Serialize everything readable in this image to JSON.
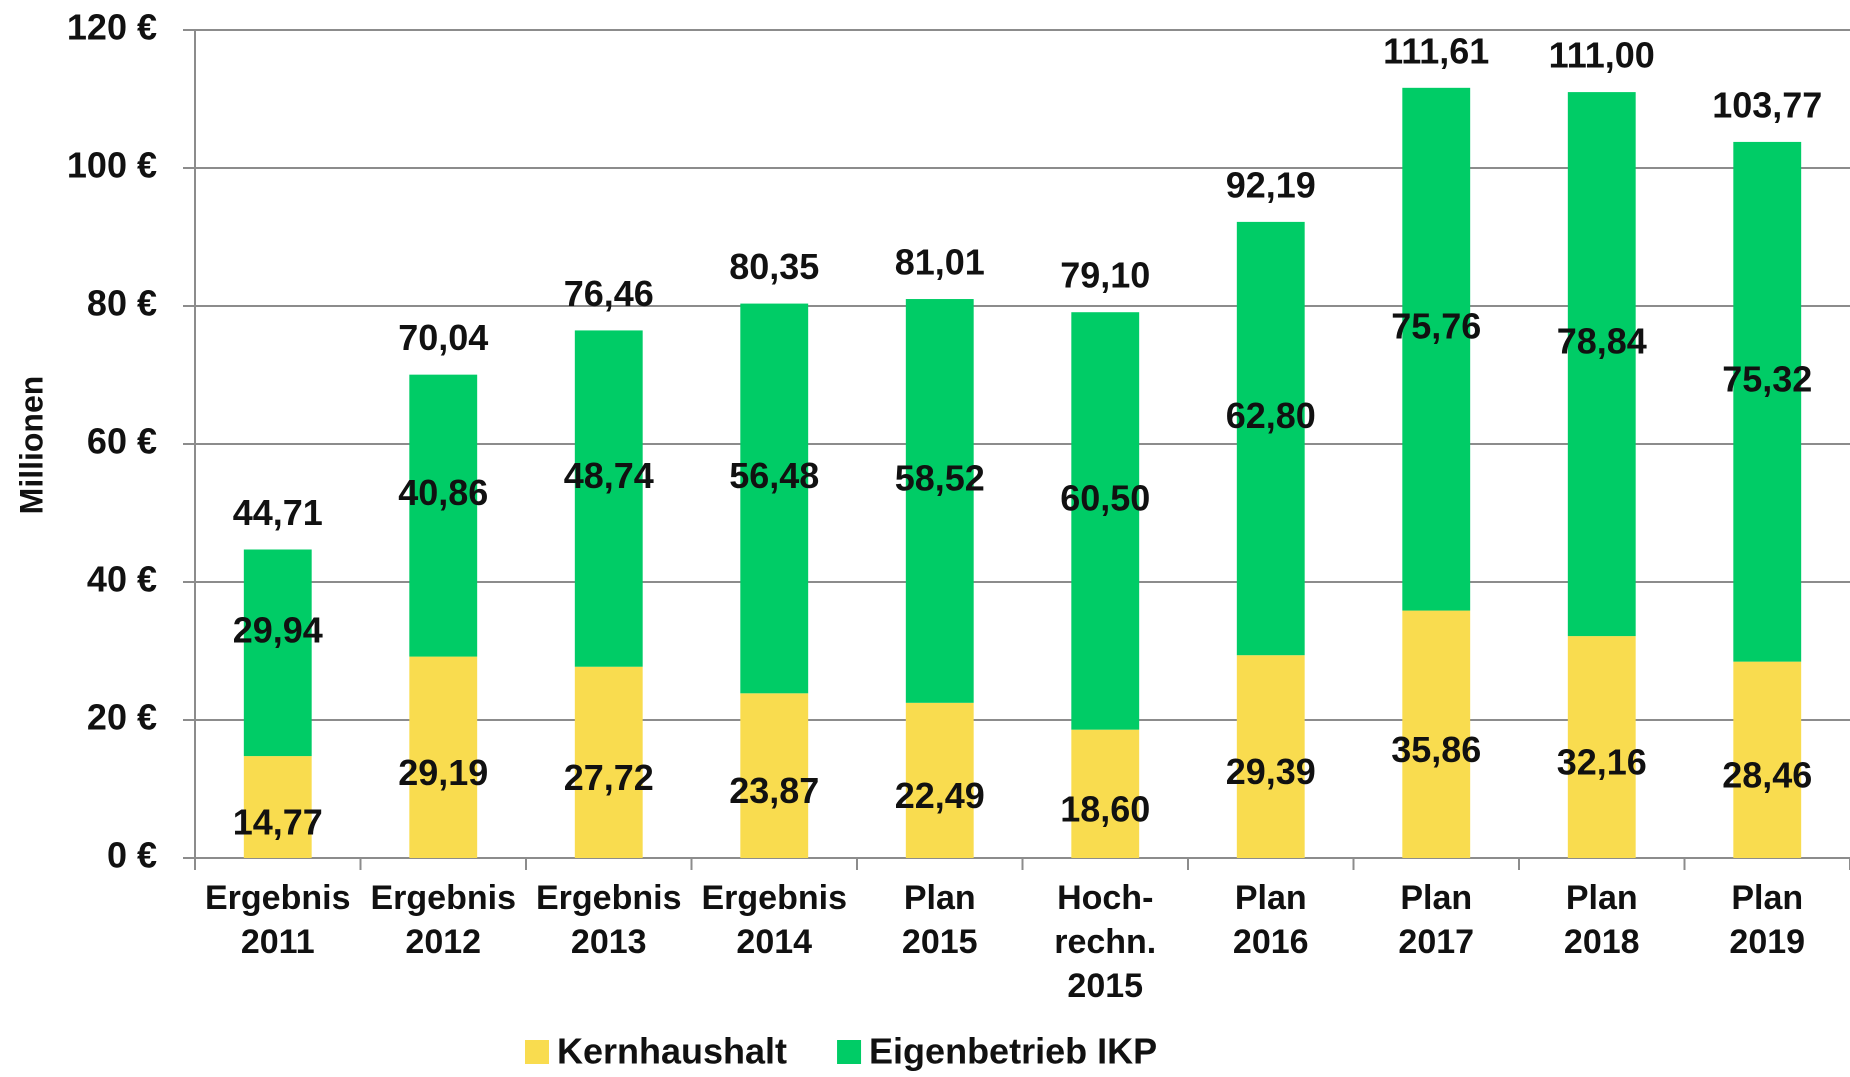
{
  "chart_data": {
    "type": "stacked_bar",
    "ylabel": "Millionen",
    "categories": [
      "Ergebnis\n2011",
      "Ergebnis\n2012",
      "Ergebnis\n2013",
      "Ergebnis\n2014",
      "Plan\n2015",
      "Hoch-\nrechn.\n2015",
      "Plan\n2016",
      "Plan\n2017",
      "Plan\n2018",
      "Plan\n2019"
    ],
    "series": [
      {
        "name": "Kernhaushalt",
        "color": "#f9dc4f",
        "values": [
          14.77,
          29.19,
          27.72,
          23.87,
          22.49,
          18.6,
          29.39,
          35.86,
          32.16,
          28.46
        ],
        "value_labels": [
          "14,77",
          "29,19",
          "27,72",
          "23,87",
          "22,49",
          "18,60",
          "29,39",
          "35,86",
          "32,16",
          "28,46"
        ]
      },
      {
        "name": "Eigenbetrieb IKP",
        "color": "#00cc66",
        "values": [
          29.94,
          40.86,
          48.74,
          56.48,
          58.52,
          60.5,
          62.8,
          75.76,
          78.84,
          75.32
        ],
        "value_labels": [
          "29,94",
          "40,86",
          "48,74",
          "56,48",
          "58,52",
          "60,50",
          "62,80",
          "75,76",
          "78,84",
          "75,32"
        ]
      }
    ],
    "totals": [
      44.71,
      70.04,
      76.46,
      80.35,
      81.01,
      79.1,
      92.19,
      111.61,
      111.0,
      103.77
    ],
    "total_labels": [
      "44,71",
      "70,04",
      "76,46",
      "80,35",
      "81,01",
      "79,10",
      "92,19",
      "111,61",
      "111,00",
      "103,77"
    ],
    "ylim": [
      0,
      120
    ],
    "yticks": [
      {
        "value": 0,
        "label": "0 €"
      },
      {
        "value": 20,
        "label": "20 €"
      },
      {
        "value": 40,
        "label": "40 €"
      },
      {
        "value": 60,
        "label": "60 €"
      },
      {
        "value": 80,
        "label": "80 €"
      },
      {
        "value": 100,
        "label": "100 €"
      },
      {
        "value": 120,
        "label": "120 €"
      }
    ],
    "grid": true,
    "legend": "bottom"
  }
}
